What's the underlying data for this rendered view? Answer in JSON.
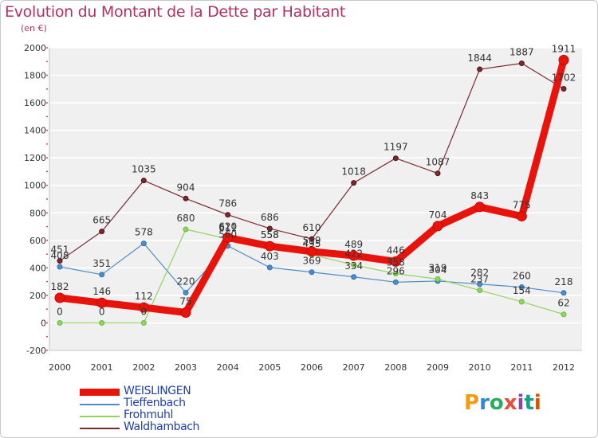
{
  "header": {
    "title": "Evolution du Montant de la Dette par Habitant",
    "subtitle": "(en €)"
  },
  "logo": {
    "text": "Proxiti",
    "colors": [
      "#f39c12",
      "#2e86de",
      "#27ae60",
      "#e74c3c",
      "#8e44ad",
      "#16a085",
      "#d35400"
    ]
  },
  "chart_data": {
    "type": "line",
    "title": "Evolution du Montant de la Dette par Habitant",
    "subtitle": "(en €)",
    "xlabel": "",
    "ylabel": "",
    "x": [
      "2000",
      "2001",
      "2002",
      "2003",
      "2004",
      "2005",
      "2006",
      "2007",
      "2008",
      "2009",
      "2010",
      "2011",
      "2012"
    ],
    "yticks": [
      "-200",
      "0",
      "200",
      "400",
      "600",
      "800",
      "1000",
      "1200",
      "1400",
      "1600",
      "1800",
      "2000"
    ],
    "ylim": [
      -200,
      2000
    ],
    "grid": "horizontal",
    "legend_position": "bottom-left",
    "series": [
      {
        "name": "WEISLINGEN",
        "color": "#e8140c",
        "values": [
          182,
          146,
          112,
          75,
          620,
          558,
          519,
          489,
          446,
          704,
          843,
          775,
          1911
        ],
        "labels": [
          "182",
          "146",
          "112",
          "75",
          "620",
          "558",
          "519",
          "489",
          "446",
          "704",
          "843",
          "775",
          "1911"
        ]
      },
      {
        "name": "Tieffenbach",
        "color": "#4e8ec8",
        "values": [
          408,
          351,
          578,
          220,
          560,
          403,
          369,
          334,
          296,
          304,
          282,
          260,
          218
        ],
        "labels": [
          "408",
          "351",
          "578",
          "220",
          "560",
          "403",
          "369",
          "334",
          "296",
          "304",
          "282",
          "260",
          "218"
        ]
      },
      {
        "name": "Frohmuhl",
        "color": "#90d560",
        "values": [
          0,
          0,
          0,
          680,
          611,
          558,
          495,
          422,
          358,
          319,
          237,
          154,
          62
        ],
        "labels": [
          "0",
          "0",
          "0",
          "680",
          "611",
          "558",
          "495",
          "422",
          "358",
          "319",
          "237",
          "154",
          "62"
        ]
      },
      {
        "name": "Waldhambach",
        "color": "#7a2a30",
        "values": [
          451,
          665,
          1035,
          904,
          786,
          686,
          610,
          1018,
          1197,
          1087,
          1844,
          1887,
          1702
        ],
        "labels": [
          "451",
          "665",
          "1035",
          "904",
          "786",
          "686",
          "610",
          "1018",
          "1197",
          "1087",
          "1844",
          "1887",
          "1702"
        ]
      }
    ]
  }
}
